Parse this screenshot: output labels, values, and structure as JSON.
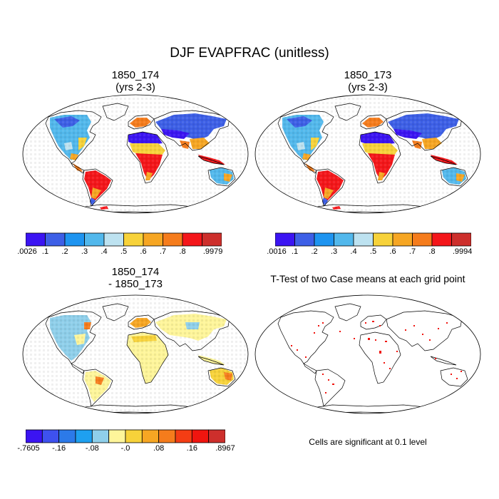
{
  "title": "DJF EVAPFRAC (unitless)",
  "panels": [
    {
      "id": "p1",
      "title_line1": "1850_174",
      "title_line2": "(yrs 2-3)",
      "type": "field"
    },
    {
      "id": "p2",
      "title_line1": "1850_173",
      "title_line2": "(yrs 2-3)",
      "type": "field"
    },
    {
      "id": "p3",
      "title_line1": "1850_174",
      "title_line2": "- 1850_173",
      "type": "diff"
    },
    {
      "id": "p4",
      "title_line1": "T-Test of two Case means at each grid point",
      "title_line2": "",
      "type": "ttest"
    }
  ],
  "colorbars": {
    "cb1": {
      "colors": [
        "#3b14f2",
        "#3d5fe6",
        "#1e94f0",
        "#52b8ec",
        "#bde2f0",
        "#f7d23a",
        "#f6a623",
        "#f57c1c",
        "#f4161a",
        "#cd2f2c"
      ],
      "ticks": [
        ".0026",
        ".1",
        ".2",
        ".3",
        ".4",
        ".5",
        ".6",
        ".7",
        ".8",
        ".9979"
      ]
    },
    "cb2": {
      "colors": [
        "#3b14f2",
        "#3d5fe6",
        "#1e94f0",
        "#52b8ec",
        "#bde2f0",
        "#f7d23a",
        "#f6a623",
        "#f57c1c",
        "#f4161a",
        "#cd2f2c"
      ],
      "ticks": [
        ".0016",
        ".1",
        ".2",
        ".3",
        ".4",
        ".5",
        ".6",
        ".7",
        ".8",
        ".9994"
      ]
    },
    "cb3": {
      "colors": [
        "#3b14f2",
        "#3e51ef",
        "#2c7ae9",
        "#1ea0f0",
        "#8fcfea",
        "#fef59a",
        "#f7d23a",
        "#f6a623",
        "#f57c1c",
        "#f43d14",
        "#f0150f",
        "#cd2f2c"
      ],
      "ticks": [
        "-.7605",
        "-.16",
        "-.08",
        "-.0",
        ".08",
        ".16",
        ".8967"
      ]
    }
  },
  "ttest_note": "Cells are significant at 0.1 level"
}
